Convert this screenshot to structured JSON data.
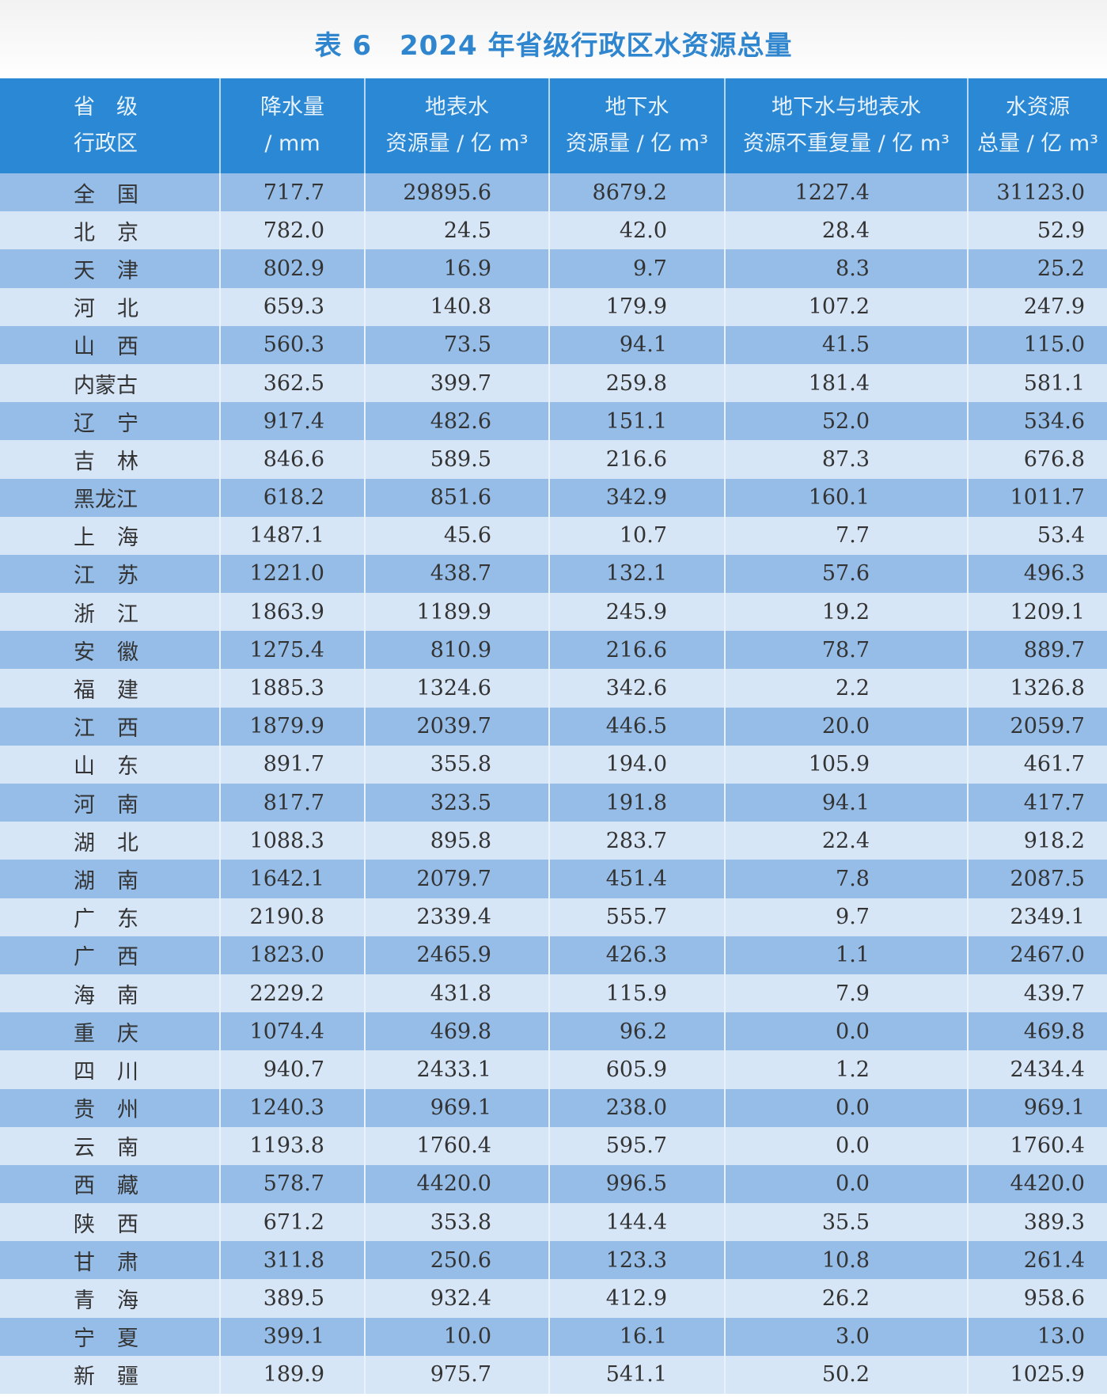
{
  "title": "表 6　2024 年省级行政区水资源总量",
  "columns": [
    {
      "line1": "省　级",
      "line2": "行政区"
    },
    {
      "line1": "降水量",
      "line2": "/ mm"
    },
    {
      "line1": "地表水",
      "line2": "资源量 / 亿 m³"
    },
    {
      "line1": "地下水",
      "line2": "资源量 / 亿 m³"
    },
    {
      "line1": "地下水与地表水",
      "line2": "资源不重复量 / 亿 m³"
    },
    {
      "line1": "水资源",
      "line2": "总量 / 亿 m³"
    }
  ],
  "colors": {
    "header": "#2a88d4",
    "title": "#2f86cf",
    "row_dark": "#95bde8",
    "row_light": "#d7e6f7"
  },
  "rows": [
    [
      "全国",
      "717.7",
      "29895.6",
      "8679.2",
      "1227.4",
      "31123.0"
    ],
    [
      "北京",
      "782.0",
      "24.5",
      "42.0",
      "28.4",
      "52.9"
    ],
    [
      "天津",
      "802.9",
      "16.9",
      "9.7",
      "8.3",
      "25.2"
    ],
    [
      "河北",
      "659.3",
      "140.8",
      "179.9",
      "107.2",
      "247.9"
    ],
    [
      "山西",
      "560.3",
      "73.5",
      "94.1",
      "41.5",
      "115.0"
    ],
    [
      "内蒙古",
      "362.5",
      "399.7",
      "259.8",
      "181.4",
      "581.1"
    ],
    [
      "辽宁",
      "917.4",
      "482.6",
      "151.1",
      "52.0",
      "534.6"
    ],
    [
      "吉林",
      "846.6",
      "589.5",
      "216.6",
      "87.3",
      "676.8"
    ],
    [
      "黑龙江",
      "618.2",
      "851.6",
      "342.9",
      "160.1",
      "1011.7"
    ],
    [
      "上海",
      "1487.1",
      "45.6",
      "10.7",
      "7.7",
      "53.4"
    ],
    [
      "江苏",
      "1221.0",
      "438.7",
      "132.1",
      "57.6",
      "496.3"
    ],
    [
      "浙江",
      "1863.9",
      "1189.9",
      "245.9",
      "19.2",
      "1209.1"
    ],
    [
      "安徽",
      "1275.4",
      "810.9",
      "216.6",
      "78.7",
      "889.7"
    ],
    [
      "福建",
      "1885.3",
      "1324.6",
      "342.6",
      "2.2",
      "1326.8"
    ],
    [
      "江西",
      "1879.9",
      "2039.7",
      "446.5",
      "20.0",
      "2059.7"
    ],
    [
      "山东",
      "891.7",
      "355.8",
      "194.0",
      "105.9",
      "461.7"
    ],
    [
      "河南",
      "817.7",
      "323.5",
      "191.8",
      "94.1",
      "417.7"
    ],
    [
      "湖北",
      "1088.3",
      "895.8",
      "283.7",
      "22.4",
      "918.2"
    ],
    [
      "湖南",
      "1642.1",
      "2079.7",
      "451.4",
      "7.8",
      "2087.5"
    ],
    [
      "广东",
      "2190.8",
      "2339.4",
      "555.7",
      "9.7",
      "2349.1"
    ],
    [
      "广西",
      "1823.0",
      "2465.9",
      "426.3",
      "1.1",
      "2467.0"
    ],
    [
      "海南",
      "2229.2",
      "431.8",
      "115.9",
      "7.9",
      "439.7"
    ],
    [
      "重庆",
      "1074.4",
      "469.8",
      "96.2",
      "0.0",
      "469.8"
    ],
    [
      "四川",
      "940.7",
      "2433.1",
      "605.9",
      "1.2",
      "2434.4"
    ],
    [
      "贵州",
      "1240.3",
      "969.1",
      "238.0",
      "0.0",
      "969.1"
    ],
    [
      "云南",
      "1193.8",
      "1760.4",
      "595.7",
      "0.0",
      "1760.4"
    ],
    [
      "西藏",
      "578.7",
      "4420.0",
      "996.5",
      "0.0",
      "4420.0"
    ],
    [
      "陕西",
      "671.2",
      "353.8",
      "144.4",
      "35.5",
      "389.3"
    ],
    [
      "甘肃",
      "311.8",
      "250.6",
      "123.3",
      "10.8",
      "261.4"
    ],
    [
      "青海",
      "389.5",
      "932.4",
      "412.9",
      "26.2",
      "958.6"
    ],
    [
      "宁夏",
      "399.1",
      "10.0",
      "16.1",
      "3.0",
      "13.0"
    ],
    [
      "新疆",
      "189.9",
      "975.7",
      "541.1",
      "50.2",
      "1025.9"
    ]
  ]
}
